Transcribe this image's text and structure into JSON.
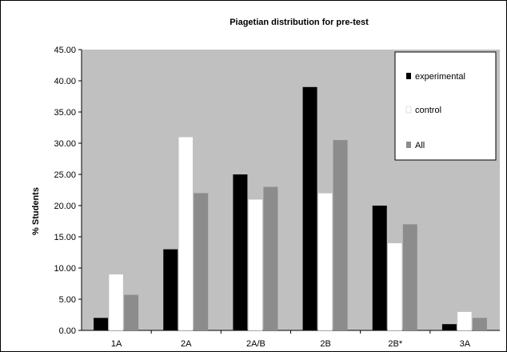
{
  "chart_data": {
    "type": "bar",
    "title": "Piagetian distribution for pre-test",
    "xlabel": "",
    "ylabel": "% Students",
    "ylim": [
      0,
      45
    ],
    "yticks": [
      "0.00",
      "5.00",
      "10.00",
      "15.00",
      "20.00",
      "25.00",
      "30.00",
      "35.00",
      "40.00",
      "45.00"
    ],
    "categories": [
      "1A",
      "2A",
      "2A/B",
      "2B",
      "2B*",
      "3A"
    ],
    "series": [
      {
        "name": "experimental",
        "color": "#000000",
        "values": [
          2,
          13,
          25,
          39,
          20,
          1
        ]
      },
      {
        "name": "control",
        "color": "#ffffff",
        "values": [
          9,
          31,
          21,
          22,
          14,
          3
        ]
      },
      {
        "name": "All",
        "color": "#8c8c8c",
        "values": [
          5.7,
          22,
          23,
          30.5,
          17,
          2
        ]
      }
    ],
    "plot_background": "#c0c0c0",
    "grid": false,
    "legend_position": "top-right"
  }
}
